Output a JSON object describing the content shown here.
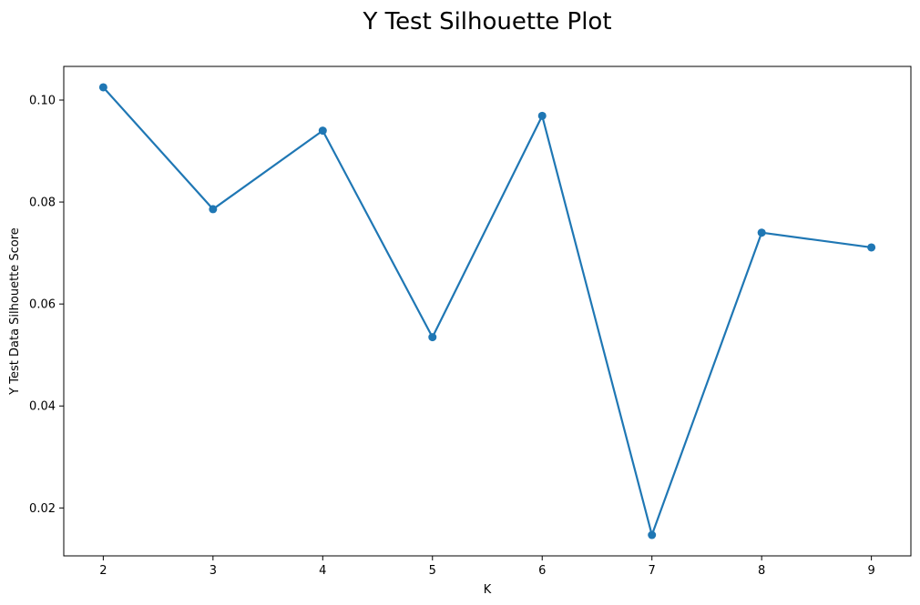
{
  "chart_data": {
    "type": "line",
    "title": "Y Test Silhouette Plot",
    "xlabel": "K",
    "ylabel": "Y Test Data Silhouette Score",
    "x": [
      2,
      3,
      4,
      5,
      6,
      7,
      8,
      9
    ],
    "series": [
      {
        "values": [
          0.1025,
          0.0786,
          0.094,
          0.0535,
          0.0969,
          0.0147,
          0.074,
          0.0711
        ],
        "color": "#1f77b4",
        "marker": "circle"
      }
    ],
    "xticks": [
      2,
      3,
      4,
      5,
      6,
      7,
      8,
      9
    ],
    "yticks": [
      0.02,
      0.04,
      0.06,
      0.08,
      0.1
    ],
    "ytick_labels": [
      "0.02",
      "0.04",
      "0.06",
      "0.08",
      "0.10"
    ],
    "xlim": [
      1.64,
      9.36
    ],
    "ylim": [
      0.0106,
      0.1066
    ],
    "grid": false,
    "legend": "none"
  }
}
